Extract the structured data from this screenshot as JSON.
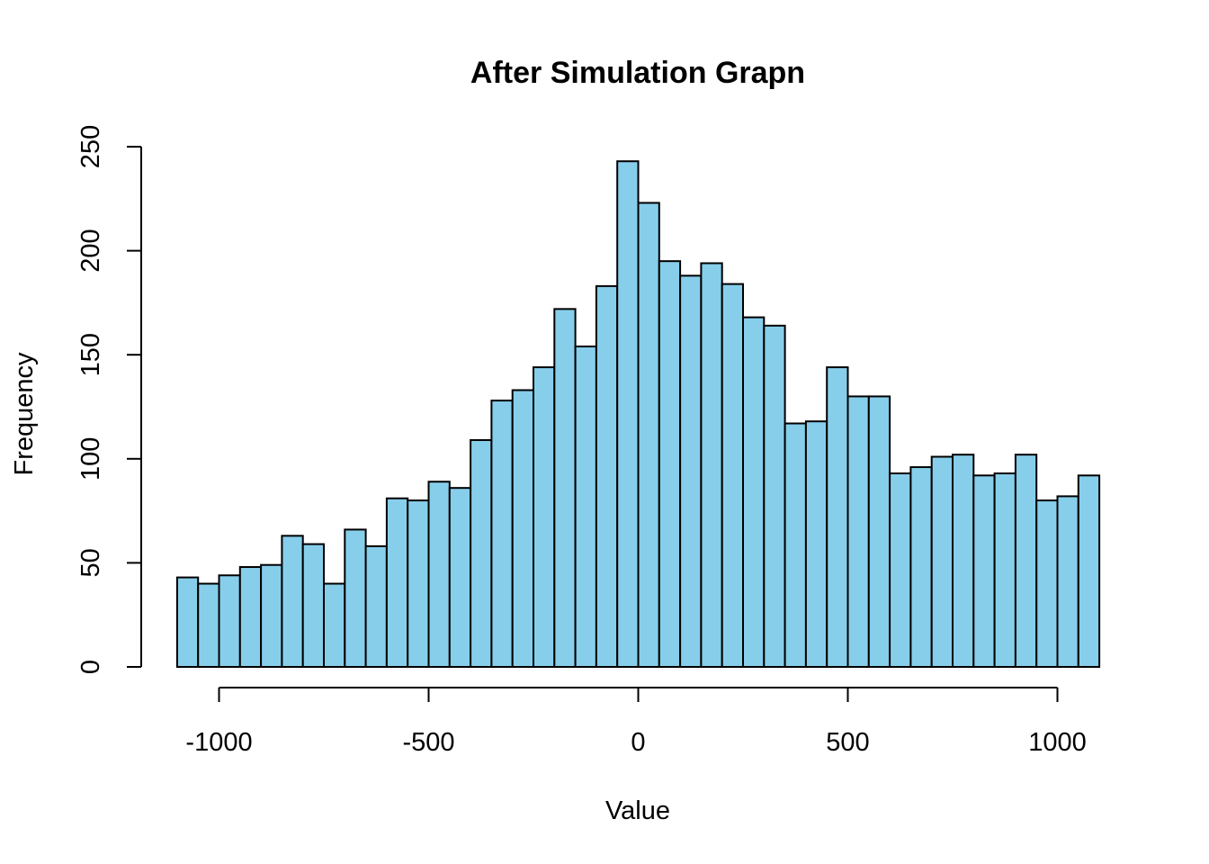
{
  "chart_data": {
    "type": "bar",
    "title": "After Simulation Grapn",
    "xlabel": "Value",
    "ylabel": "Frequency",
    "bar_color": "#87CEEB",
    "bin_width": 50,
    "bins_start": -1100,
    "x_ticks": [
      -1000,
      -500,
      0,
      500,
      1000
    ],
    "x_tick_labels": [
      "-1000",
      "-500",
      "0",
      "500",
      "1000"
    ],
    "xlim": [
      -1000,
      1000
    ],
    "y_ticks": [
      0,
      50,
      100,
      150,
      200,
      250
    ],
    "y_tick_labels": [
      "0",
      "50",
      "100",
      "150",
      "200",
      "250"
    ],
    "ylim": [
      0,
      250
    ],
    "values": [
      43,
      40,
      44,
      48,
      49,
      63,
      59,
      40,
      66,
      58,
      81,
      80,
      89,
      86,
      109,
      128,
      133,
      144,
      172,
      154,
      183,
      243,
      223,
      195,
      188,
      194,
      184,
      168,
      164,
      117,
      118,
      144,
      130,
      130,
      93,
      96,
      101,
      102,
      92,
      93,
      102,
      80,
      82,
      92
    ],
    "grid": false,
    "legend": "none"
  }
}
